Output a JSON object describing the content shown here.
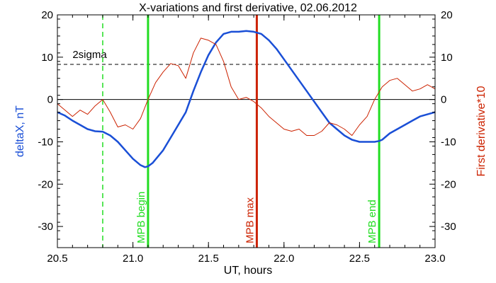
{
  "chart_data": {
    "type": "line",
    "title": "X-variations and first derivative, 02.06.2012",
    "xlabel": "UT, hours",
    "ylabel_left": "deltaX, nT",
    "ylabel_right": "First derivative*10",
    "xlim": [
      20.5,
      23.0
    ],
    "ylim": [
      -35,
      20
    ],
    "x_ticks": [
      20.5,
      21.0,
      21.5,
      22.0,
      22.5,
      23.0
    ],
    "x_tick_labels": [
      "20.5",
      "21.0",
      "21.5",
      "22.0",
      "22.5",
      "23.0"
    ],
    "y_ticks": [
      -30,
      -20,
      -10,
      0,
      10,
      20
    ],
    "y_tick_labels": [
      "-30",
      "-20",
      "-10",
      "0",
      "10",
      "20"
    ],
    "grid": false,
    "colors": {
      "deltaX": "#1a4fd6",
      "derivative": "#cc2200",
      "markers_green": "#22dd22",
      "marker_max": "#cc2200",
      "axis": "#000000"
    },
    "series": [
      {
        "name": "deltaX, nT",
        "x": [
          20.5,
          20.55,
          20.6,
          20.65,
          20.7,
          20.75,
          20.8,
          20.85,
          20.9,
          20.95,
          21.0,
          21.05,
          21.08,
          21.1,
          21.13,
          21.2,
          21.25,
          21.3,
          21.35,
          21.4,
          21.45,
          21.5,
          21.55,
          21.6,
          21.65,
          21.7,
          21.75,
          21.8,
          21.85,
          21.9,
          21.95,
          22.0,
          22.05,
          22.1,
          22.15,
          22.2,
          22.25,
          22.3,
          22.35,
          22.4,
          22.45,
          22.5,
          22.55,
          22.6,
          22.63,
          22.65,
          22.7,
          22.75,
          22.8,
          22.85,
          22.9,
          22.95,
          23.0
        ],
        "values": [
          -3.0,
          -3.8,
          -5.0,
          -6.0,
          -7.0,
          -7.5,
          -7.6,
          -8.5,
          -10.0,
          -12.0,
          -14.0,
          -15.5,
          -16.0,
          -15.8,
          -15.0,
          -12.0,
          -9.0,
          -6.0,
          -3.0,
          2.0,
          6.5,
          10.5,
          13.5,
          15.5,
          16.0,
          16.0,
          16.2,
          16.0,
          15.5,
          14.0,
          12.0,
          9.5,
          7.0,
          4.5,
          2.0,
          -0.5,
          -3.0,
          -5.5,
          -7.0,
          -8.5,
          -9.5,
          -10.0,
          -10.0,
          -10.0,
          -9.8,
          -9.5,
          -8.0,
          -7.0,
          -6.0,
          -5.0,
          -4.0,
          -3.5,
          -3.0
        ]
      },
      {
        "name": "First derivative*10",
        "x": [
          20.5,
          20.55,
          20.6,
          20.65,
          20.7,
          20.75,
          20.8,
          20.85,
          20.9,
          20.95,
          21.0,
          21.05,
          21.1,
          21.15,
          21.2,
          21.25,
          21.3,
          21.35,
          21.4,
          21.45,
          21.5,
          21.55,
          21.6,
          21.65,
          21.7,
          21.75,
          21.8,
          21.85,
          21.9,
          21.95,
          22.0,
          22.05,
          22.1,
          22.15,
          22.2,
          22.25,
          22.3,
          22.35,
          22.4,
          22.45,
          22.5,
          22.55,
          22.6,
          22.65,
          22.7,
          22.75,
          22.8,
          22.85,
          22.9,
          22.95,
          23.0
        ],
        "values": [
          -1.0,
          -2.5,
          -4.0,
          -2.5,
          -3.5,
          -1.5,
          0.0,
          -3.0,
          -6.5,
          -6.0,
          -7.0,
          -4.5,
          0.0,
          4.0,
          6.5,
          8.5,
          8.0,
          5.0,
          11.0,
          14.5,
          14.0,
          13.0,
          9.0,
          3.0,
          0.0,
          0.5,
          -0.5,
          -2.0,
          -4.0,
          -5.5,
          -7.0,
          -7.5,
          -7.0,
          -8.5,
          -8.5,
          -7.5,
          -5.5,
          -6.0,
          -7.0,
          -8.5,
          -6.0,
          -4.0,
          0.0,
          3.0,
          4.5,
          5.0,
          3.5,
          2.0,
          2.5,
          3.5,
          2.5
        ],
        "axis": "right"
      }
    ],
    "threshold": {
      "value": 8.3,
      "label": "2sigma"
    },
    "vertical_lines": [
      {
        "x": 20.8,
        "style": "dashed",
        "color": "#22dd22",
        "label": ""
      },
      {
        "x": 21.1,
        "style": "solid",
        "color": "#22dd22",
        "label": "MPB begin"
      },
      {
        "x": 21.82,
        "style": "solid",
        "color": "#cc2200",
        "label": "MPB max"
      },
      {
        "x": 22.63,
        "style": "solid",
        "color": "#22dd22",
        "label": "MPB end"
      }
    ]
  }
}
